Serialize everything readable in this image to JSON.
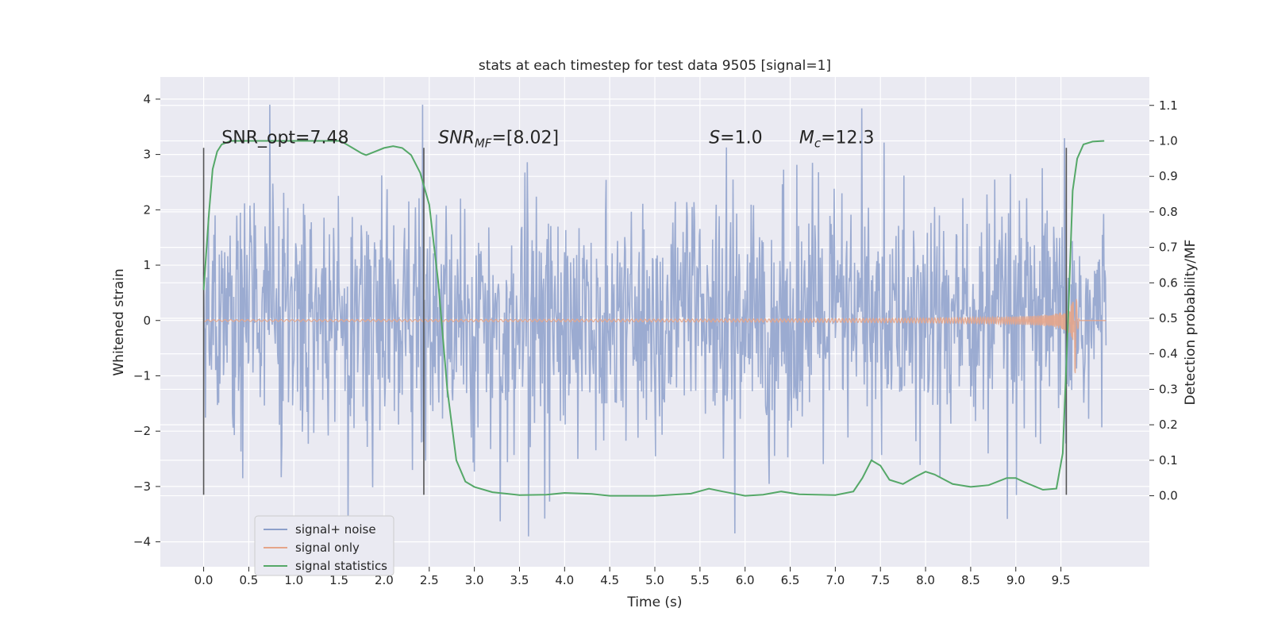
{
  "chart_data": {
    "type": "line",
    "title": "stats at each timestep for test data 9505 [signal=1]",
    "xlabel": "Time (s)",
    "ylabel": "Whitened strain",
    "y2label": "Detection probability/MF",
    "xlim": [
      -0.48,
      10.48
    ],
    "ylim": [
      -4.45,
      4.4
    ],
    "y2lim": [
      -0.2,
      1.18
    ],
    "x_ticks": [
      "0.0",
      "0.5",
      "1.0",
      "1.5",
      "2.0",
      "2.5",
      "3.0",
      "3.5",
      "4.0",
      "4.5",
      "5.0",
      "5.5",
      "6.0",
      "6.5",
      "7.0",
      "7.5",
      "8.0",
      "8.5",
      "9.0",
      "9.5"
    ],
    "y_ticks": [
      "4",
      "3",
      "2",
      "1",
      "0",
      "−1",
      "−2",
      "−3",
      "−4"
    ],
    "y2_ticks": [
      "1.1",
      "1.0",
      "0.9",
      "0.8",
      "0.7",
      "0.6",
      "0.5",
      "0.4",
      "0.3",
      "0.2",
      "0.1",
      "0.0"
    ],
    "grid": true,
    "legend_position": "lower-left",
    "series": [
      {
        "name": "signal+ noise",
        "color": "#8da0cb",
        "style": "dense noisy trace, amplitude roughly ±2.5 with spikes to ±4",
        "t_range": [
          0.0,
          10.0
        ]
      },
      {
        "name": "signal only",
        "color": "#e5a58a",
        "style": "chirp growing in amplitude until merger at ~9.65 s",
        "peak": 1.05,
        "merger_time": 9.65
      },
      {
        "name": "signal statistics",
        "color": "#55a868",
        "axis": "right",
        "points": [
          [
            0.0,
            0.58
          ],
          [
            0.06,
            0.8
          ],
          [
            0.1,
            0.92
          ],
          [
            0.15,
            0.97
          ],
          [
            0.2,
            0.99
          ],
          [
            0.3,
            1.0
          ],
          [
            0.5,
            1.0
          ],
          [
            1.0,
            1.0
          ],
          [
            1.5,
            1.0
          ],
          [
            1.55,
            0.995
          ],
          [
            1.65,
            0.98
          ],
          [
            1.75,
            0.965
          ],
          [
            1.8,
            0.96
          ],
          [
            1.9,
            0.97
          ],
          [
            2.0,
            0.98
          ],
          [
            2.1,
            0.985
          ],
          [
            2.2,
            0.98
          ],
          [
            2.3,
            0.96
          ],
          [
            2.4,
            0.91
          ],
          [
            2.5,
            0.82
          ],
          [
            2.6,
            0.6
          ],
          [
            2.7,
            0.3
          ],
          [
            2.8,
            0.1
          ],
          [
            2.9,
            0.04
          ],
          [
            3.0,
            0.025
          ],
          [
            3.2,
            0.01
          ],
          [
            3.5,
            0.002
          ],
          [
            3.8,
            0.003
          ],
          [
            4.0,
            0.008
          ],
          [
            4.3,
            0.005
          ],
          [
            4.5,
            0.0
          ],
          [
            5.0,
            0.0
          ],
          [
            5.4,
            0.006
          ],
          [
            5.6,
            0.02
          ],
          [
            5.75,
            0.012
          ],
          [
            6.0,
            0.0
          ],
          [
            6.2,
            0.003
          ],
          [
            6.4,
            0.012
          ],
          [
            6.6,
            0.004
          ],
          [
            7.0,
            0.002
          ],
          [
            7.2,
            0.012
          ],
          [
            7.3,
            0.05
          ],
          [
            7.4,
            0.1
          ],
          [
            7.5,
            0.085
          ],
          [
            7.6,
            0.045
          ],
          [
            7.75,
            0.033
          ],
          [
            7.9,
            0.055
          ],
          [
            8.0,
            0.068
          ],
          [
            8.1,
            0.06
          ],
          [
            8.3,
            0.033
          ],
          [
            8.5,
            0.025
          ],
          [
            8.7,
            0.03
          ],
          [
            8.8,
            0.04
          ],
          [
            8.9,
            0.05
          ],
          [
            9.0,
            0.05
          ],
          [
            9.1,
            0.038
          ],
          [
            9.3,
            0.017
          ],
          [
            9.45,
            0.02
          ],
          [
            9.52,
            0.12
          ],
          [
            9.58,
            0.5
          ],
          [
            9.63,
            0.86
          ],
          [
            9.68,
            0.95
          ],
          [
            9.75,
            0.99
          ],
          [
            9.85,
            0.998
          ],
          [
            9.98,
            1.0
          ]
        ]
      }
    ],
    "segment_markers_s": [
      0.0,
      2.44,
      9.56
    ],
    "annotations": [
      {
        "text": "SNR_opt=7.48",
        "x": 0.2,
        "y": 3.2
      },
      {
        "text": "SNR_MF=[8.02]",
        "x": 2.6,
        "y": 3.2
      },
      {
        "text": "S=1.0",
        "x": 5.6,
        "y": 3.2
      },
      {
        "text": "M_c=12.3",
        "x": 6.6,
        "y": 3.2
      }
    ]
  }
}
